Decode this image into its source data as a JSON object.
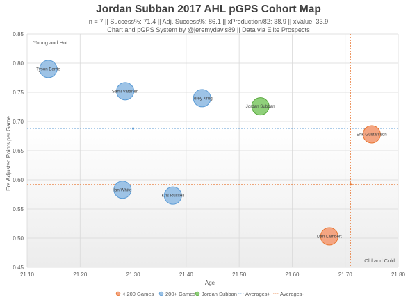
{
  "chart_data": {
    "type": "scatter",
    "title": "Jordan Subban 2017 AHL pGPS Cohort Map",
    "subtitle_line1": "n = 7 || Success%: 71.4 || Adj. Success%: 86.1 || xProduction/82: 38.9 || xValue: 33.9",
    "subtitle_line2": "Chart and pGPS System by @jeremydavis89 || Data via Elite Prospects",
    "xlabel": "Age",
    "ylabel": "Era Adjusted Points per Game",
    "xlim": [
      21.1,
      21.8
    ],
    "ylim": [
      0.45,
      0.85
    ],
    "xticks": [
      "21.10",
      "21.20",
      "21.30",
      "21.40",
      "21.50",
      "21.60",
      "21.70",
      "21.80"
    ],
    "yticks": [
      "0.45",
      "0.50",
      "0.55",
      "0.60",
      "0.65",
      "0.70",
      "0.75",
      "0.80",
      "0.85"
    ],
    "grid": true,
    "legend_position": "bottom",
    "quadrant_labels": {
      "top_left": "Young and Hot",
      "bottom_right": "Old and Cold"
    },
    "averages": {
      "plus": {
        "x": 21.3,
        "y": 0.688
      },
      "minus": {
        "x": 21.71,
        "y": 0.592
      }
    },
    "series": [
      {
        "name": "< 200 Games",
        "color": "#f4a582",
        "stroke": "#e8742e",
        "points": [
          {
            "label": "Erik Gustafsson",
            "x": 21.75,
            "y": 0.678
          },
          {
            "label": "Dan Lambert",
            "x": 21.67,
            "y": 0.503
          }
        ]
      },
      {
        "name": "200+ Games",
        "color": "#9dc3e6",
        "stroke": "#5b9bd5",
        "points": [
          {
            "label": "Tyson Barrie",
            "x": 21.14,
            "y": 0.79
          },
          {
            "label": "Sami Vatanen",
            "x": 21.285,
            "y": 0.752
          },
          {
            "label": "Torey Krug",
            "x": 21.43,
            "y": 0.74
          },
          {
            "label": "Ian White",
            "x": 21.28,
            "y": 0.583
          },
          {
            "label": "Kris Russell",
            "x": 21.375,
            "y": 0.573
          }
        ]
      },
      {
        "name": "Jordan Subban",
        "color": "#8fd07a",
        "stroke": "#5aa83e",
        "points": [
          {
            "label": "Jordan Subban",
            "x": 21.54,
            "y": 0.726
          }
        ]
      },
      {
        "name": "Averages+",
        "color": "#9dc3e6",
        "stroke": "#5b9bd5",
        "points": []
      },
      {
        "name": "Averages-",
        "color": "#f4a582",
        "stroke": "#e8742e",
        "points": []
      }
    ]
  }
}
